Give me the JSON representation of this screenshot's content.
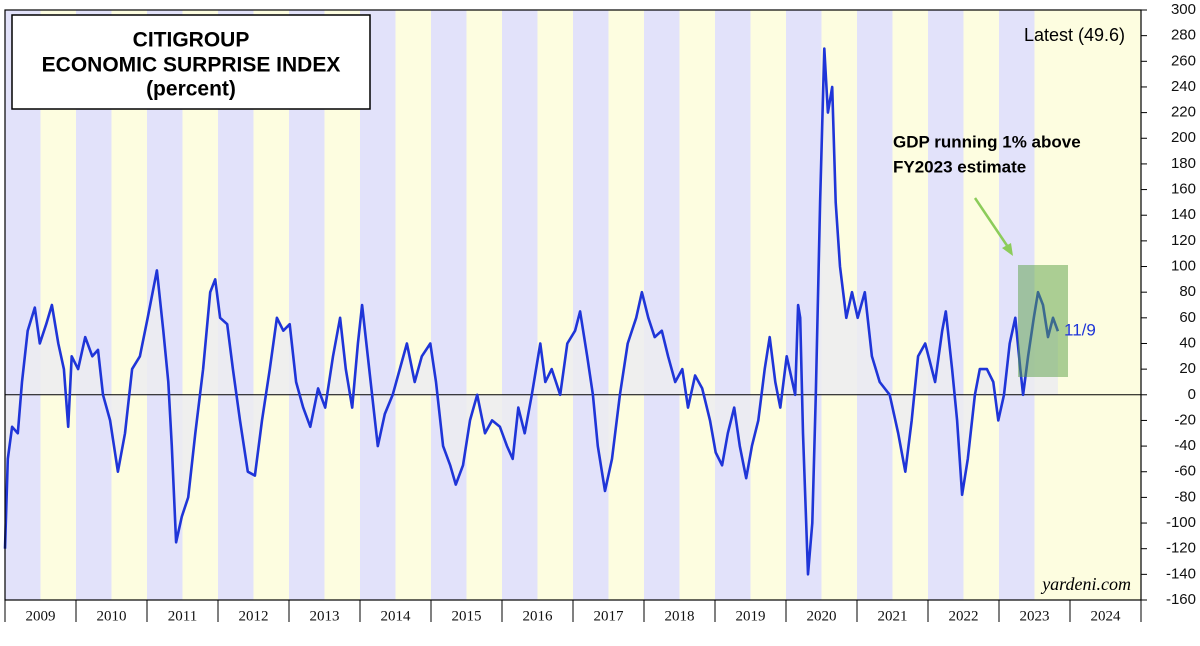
{
  "chart_data": {
    "type": "line",
    "title_lines": [
      "CITIGROUP",
      "ECONOMIC SURPRISE INDEX",
      "(percent)"
    ],
    "latest_label": "Latest (49.6)",
    "annotation_lines": [
      "GDP running 1% above",
      "FY2023 estimate"
    ],
    "end_label": "11/9",
    "source": "yardeni.com",
    "color": "#1f35d8",
    "area_color": "#ececf0",
    "xlim": [
      2009,
      2025
    ],
    "xticks": [
      2009,
      2010,
      2011,
      2012,
      2013,
      2014,
      2015,
      2016,
      2017,
      2018,
      2019,
      2020,
      2021,
      2022,
      2023,
      2024,
      2025
    ],
    "xlabels": [
      "2009",
      "2010",
      "2011",
      "2012",
      "2013",
      "2014",
      "2015",
      "2016",
      "2017",
      "2018",
      "2019",
      "2020",
      "2021",
      "2022",
      "2023",
      "2024"
    ],
    "ylim": [
      -160,
      300
    ],
    "yticks": [
      300,
      280,
      260,
      240,
      220,
      200,
      180,
      160,
      140,
      120,
      100,
      80,
      60,
      40,
      20,
      0,
      -20,
      -40,
      -60,
      -80,
      -100,
      -120,
      -140,
      -160
    ],
    "x": [
      2009.0,
      2009.04,
      2009.1,
      2009.18,
      2009.24,
      2009.32,
      2009.42,
      2009.49,
      2009.58,
      2009.66,
      2009.75,
      2009.83,
      2009.89,
      2009.94,
      2010.03,
      2010.13,
      2010.23,
      2010.31,
      2010.38,
      2010.48,
      2010.59,
      2010.69,
      2010.79,
      2010.9,
      2011.01,
      2011.14,
      2011.23,
      2011.3,
      2011.35,
      2011.41,
      2011.49,
      2011.58,
      2011.68,
      2011.79,
      2011.89,
      2011.96,
      2012.03,
      2012.13,
      2012.21,
      2012.31,
      2012.42,
      2012.52,
      2012.62,
      2012.73,
      2012.83,
      2012.92,
      2013.01,
      2013.1,
      2013.2,
      2013.3,
      2013.41,
      2013.51,
      2013.62,
      2013.72,
      2013.8,
      2013.89,
      2013.97,
      2014.03,
      2014.11,
      2014.25,
      2014.35,
      2014.46,
      2014.56,
      2014.66,
      2014.77,
      2014.87,
      2014.99,
      2015.07,
      2015.17,
      2015.27,
      2015.35,
      2015.45,
      2015.55,
      2015.65,
      2015.76,
      2015.86,
      2015.97,
      2016.07,
      2016.15,
      2016.23,
      2016.32,
      2016.42,
      2016.54,
      2016.61,
      2016.7,
      2016.82,
      2016.92,
      2017.03,
      2017.1,
      2017.2,
      2017.28,
      2017.35,
      2017.45,
      2017.55,
      2017.66,
      2017.77,
      2017.89,
      2017.97,
      2018.06,
      2018.15,
      2018.25,
      2018.34,
      2018.44,
      2018.54,
      2018.62,
      2018.72,
      2018.82,
      2018.93,
      2019.01,
      2019.1,
      2019.18,
      2019.27,
      2019.35,
      2019.44,
      2019.52,
      2019.61,
      2019.7,
      2019.77,
      2019.85,
      2019.92,
      2020.01,
      2020.13,
      2020.17,
      2020.2,
      2020.24,
      2020.31,
      2020.37,
      2020.42,
      2020.48,
      2020.54,
      2020.59,
      2020.65,
      2020.7,
      2020.76,
      2020.85,
      2020.93,
      2021.01,
      2021.11,
      2021.21,
      2021.32,
      2021.46,
      2021.58,
      2021.68,
      2021.77,
      2021.86,
      2021.96,
      2022.1,
      2022.2,
      2022.25,
      2022.34,
      2022.41,
      2022.48,
      2022.56,
      2022.66,
      2022.73,
      2022.83,
      2022.92,
      2022.99,
      2023.07,
      2023.15,
      2023.23,
      2023.3,
      2023.34,
      2023.41,
      2023.49,
      2023.55,
      2023.62,
      2023.69,
      2023.76,
      2023.83
    ],
    "values": [
      -120,
      -50,
      -25,
      -30,
      10,
      50,
      68,
      40,
      55,
      70,
      40,
      20,
      -25,
      30,
      20,
      45,
      30,
      35,
      0,
      -20,
      -60,
      -30,
      20,
      30,
      60,
      97,
      50,
      10,
      -40,
      -115,
      -95,
      -80,
      -30,
      20,
      80,
      90,
      60,
      55,
      20,
      -20,
      -60,
      -63,
      -20,
      20,
      60,
      50,
      55,
      10,
      -10,
      -25,
      5,
      -10,
      30,
      60,
      20,
      -10,
      40,
      70,
      30,
      -40,
      -15,
      0,
      20,
      40,
      10,
      30,
      40,
      10,
      -40,
      -55,
      -70,
      -55,
      -20,
      0,
      -30,
      -20,
      -25,
      -40,
      -50,
      -10,
      -30,
      0,
      40,
      10,
      20,
      0,
      40,
      50,
      65,
      30,
      0,
      -40,
      -75,
      -50,
      0,
      40,
      60,
      80,
      60,
      45,
      50,
      30,
      10,
      20,
      -10,
      15,
      5,
      -20,
      -45,
      -55,
      -30,
      -10,
      -40,
      -65,
      -40,
      -20,
      20,
      45,
      10,
      -10,
      30,
      0,
      70,
      60,
      -30,
      -140,
      -100,
      0,
      150,
      270,
      220,
      240,
      150,
      100,
      60,
      80,
      60,
      80,
      30,
      10,
      0,
      -30,
      -60,
      -20,
      30,
      40,
      10,
      50,
      65,
      20,
      -20,
      -78,
      -50,
      0,
      20,
      20,
      10,
      -20,
      0,
      40,
      60,
      20,
      0,
      30,
      60,
      80,
      70,
      45,
      60,
      49.6
    ]
  }
}
